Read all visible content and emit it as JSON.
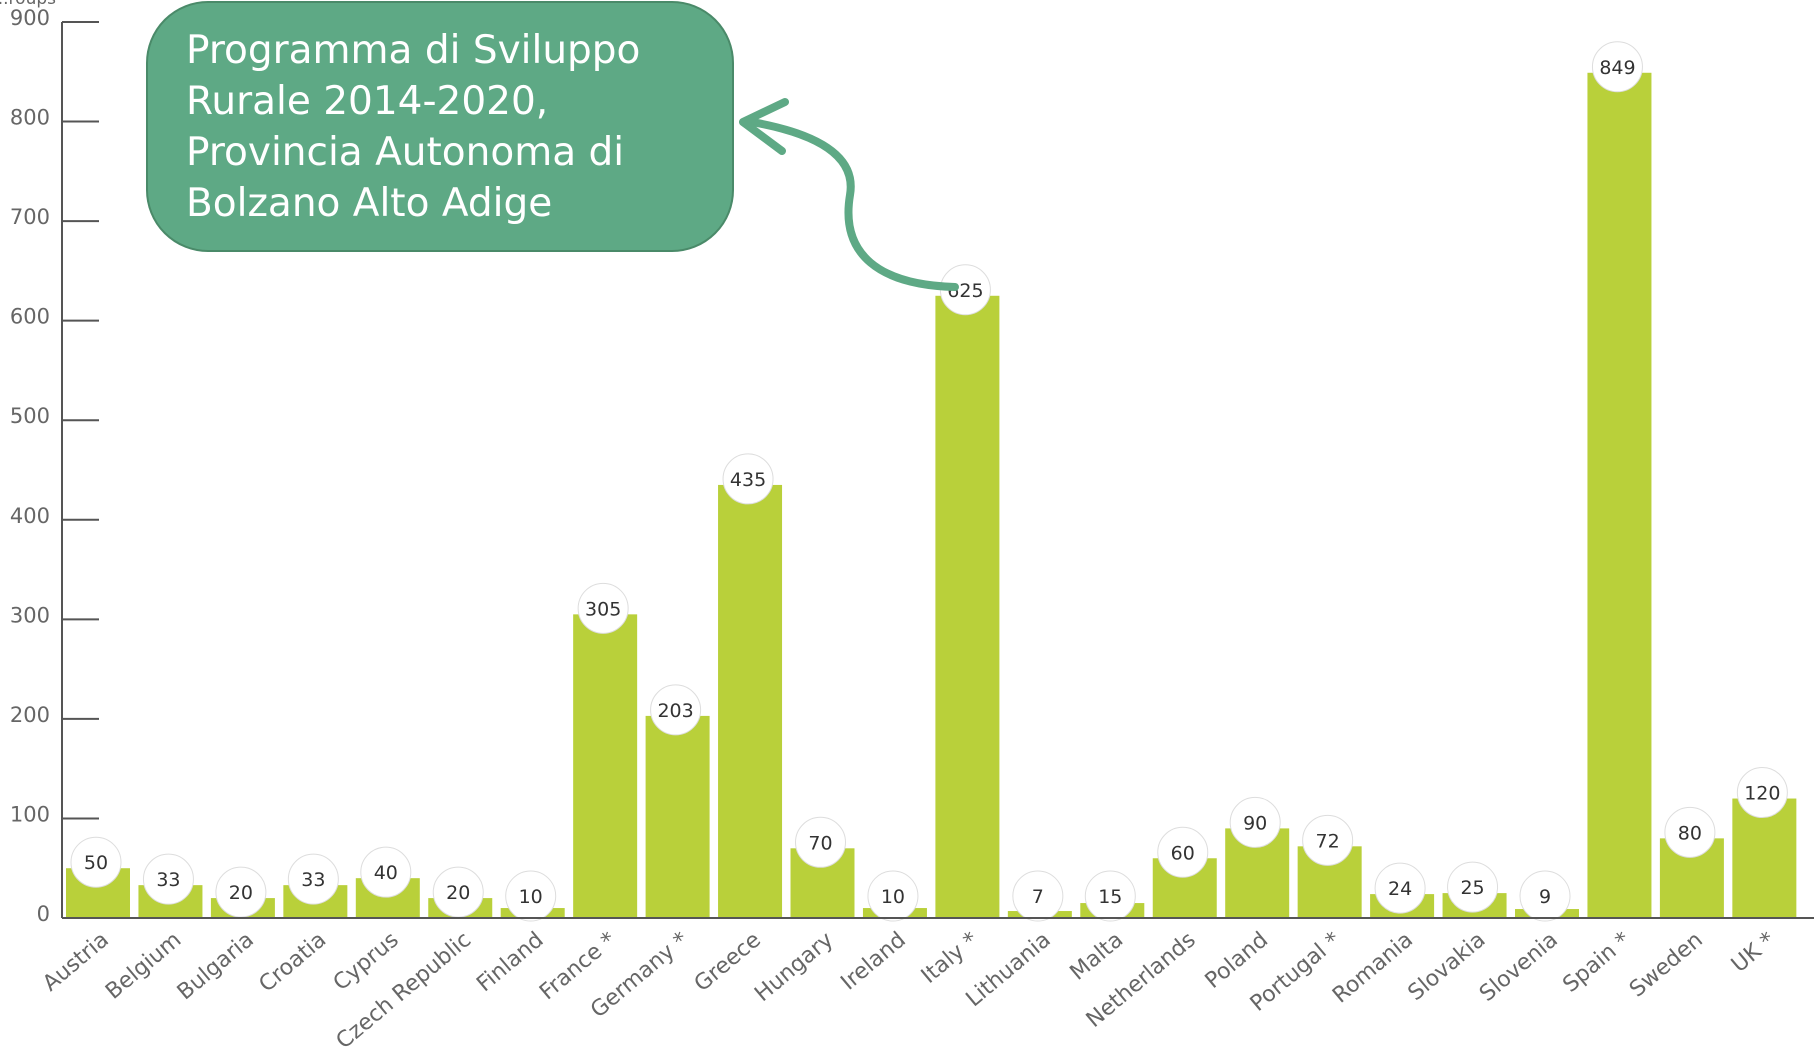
{
  "chart_data": {
    "type": "bar",
    "ylabel": "...roups",
    "ylim": [
      0,
      900
    ],
    "yticks": [
      0,
      100,
      200,
      300,
      400,
      500,
      600,
      700,
      800,
      900
    ],
    "grid": false,
    "categories": [
      "Austria",
      "Belgium",
      "Bulgaria",
      "Croatia",
      "Cyprus",
      "Czech Republic",
      "Finland",
      "France *",
      "Germany *",
      "Greece",
      "Hungary",
      "Ireland",
      "Italy *",
      "Lithuania",
      "Malta",
      "Netherlands",
      "Poland",
      "Portugal *",
      "Romania",
      "Slovakia",
      "Slovenia",
      "Spain *",
      "Sweden",
      "UK *"
    ],
    "values": [
      50,
      33,
      20,
      33,
      40,
      20,
      10,
      305,
      203,
      435,
      70,
      10,
      625,
      7,
      15,
      60,
      90,
      72,
      24,
      25,
      9,
      849,
      80,
      120
    ],
    "value_labels": [
      "50",
      "33",
      "20",
      "33",
      "40",
      "20",
      "10",
      "305",
      "203",
      "435",
      "70",
      "10",
      "625",
      "7",
      "15",
      "60",
      "90",
      "72",
      "24",
      "25",
      "9",
      "849",
      "80",
      "120"
    ],
    "colors": {
      "bar": "#b9d03a",
      "axis": "#555555",
      "callout": "#5ea985"
    },
    "annotation": {
      "text": "Programma di Sviluppo\nRurale 2014-2020,\nProvincia Autonoma di\nBolzano Alto Adige",
      "points_to": "Italy *"
    }
  }
}
